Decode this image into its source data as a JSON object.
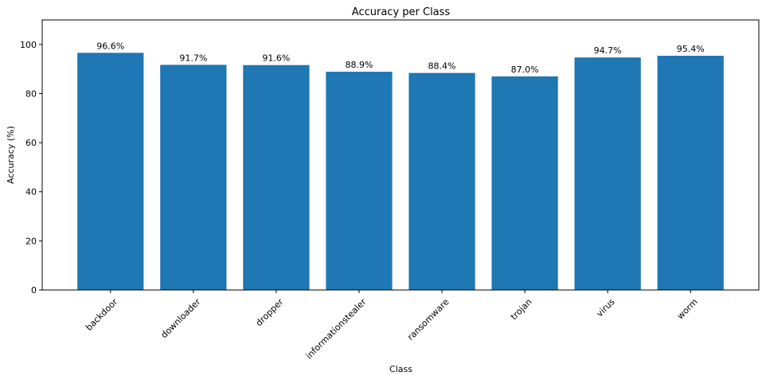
{
  "chart_data": {
    "type": "bar",
    "title": "Accuracy per Class",
    "xlabel": "Class",
    "ylabel": "Accuracy (%)",
    "categories": [
      "backdoor",
      "downloader",
      "dropper",
      "informationstealer",
      "ransomware",
      "trojan",
      "virus",
      "worm"
    ],
    "values": [
      96.6,
      91.7,
      91.6,
      88.9,
      88.4,
      87.0,
      94.7,
      95.4
    ],
    "data_labels": [
      "96.6%",
      "91.7%",
      "91.6%",
      "88.9%",
      "88.4%",
      "87.0%",
      "94.7%",
      "95.4%"
    ],
    "ylim": [
      0,
      110
    ],
    "yticks": [
      0,
      20,
      40,
      60,
      80,
      100
    ],
    "grid": false,
    "bar_color": "#1f77b4",
    "xtick_rotation": 45
  }
}
